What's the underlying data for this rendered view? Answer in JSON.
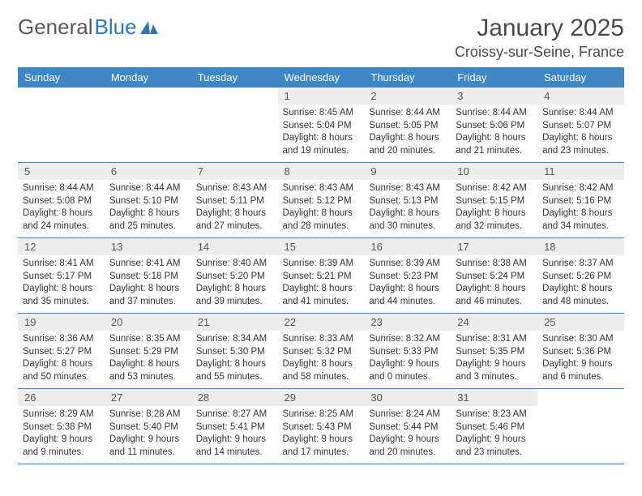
{
  "logo": {
    "text1": "General",
    "text2": "Blue"
  },
  "title": "January 2025",
  "location": "Croissy-sur-Seine, France",
  "colors": {
    "header_bg": "#3d87c7",
    "header_text": "#ffffff",
    "daynum_bg": "#ededed",
    "border": "#3d87c7",
    "logo_gray": "#5a5a5a",
    "logo_blue": "#2f77b5"
  },
  "weekdays": [
    "Sunday",
    "Monday",
    "Tuesday",
    "Wednesday",
    "Thursday",
    "Friday",
    "Saturday"
  ],
  "weeks": [
    [
      null,
      null,
      null,
      {
        "n": "1",
        "sr": "8:45 AM",
        "ss": "5:04 PM",
        "dl": "8 hours and 19 minutes."
      },
      {
        "n": "2",
        "sr": "8:44 AM",
        "ss": "5:05 PM",
        "dl": "8 hours and 20 minutes."
      },
      {
        "n": "3",
        "sr": "8:44 AM",
        "ss": "5:06 PM",
        "dl": "8 hours and 21 minutes."
      },
      {
        "n": "4",
        "sr": "8:44 AM",
        "ss": "5:07 PM",
        "dl": "8 hours and 23 minutes."
      }
    ],
    [
      {
        "n": "5",
        "sr": "8:44 AM",
        "ss": "5:08 PM",
        "dl": "8 hours and 24 minutes."
      },
      {
        "n": "6",
        "sr": "8:44 AM",
        "ss": "5:10 PM",
        "dl": "8 hours and 25 minutes."
      },
      {
        "n": "7",
        "sr": "8:43 AM",
        "ss": "5:11 PM",
        "dl": "8 hours and 27 minutes."
      },
      {
        "n": "8",
        "sr": "8:43 AM",
        "ss": "5:12 PM",
        "dl": "8 hours and 28 minutes."
      },
      {
        "n": "9",
        "sr": "8:43 AM",
        "ss": "5:13 PM",
        "dl": "8 hours and 30 minutes."
      },
      {
        "n": "10",
        "sr": "8:42 AM",
        "ss": "5:15 PM",
        "dl": "8 hours and 32 minutes."
      },
      {
        "n": "11",
        "sr": "8:42 AM",
        "ss": "5:16 PM",
        "dl": "8 hours and 34 minutes."
      }
    ],
    [
      {
        "n": "12",
        "sr": "8:41 AM",
        "ss": "5:17 PM",
        "dl": "8 hours and 35 minutes."
      },
      {
        "n": "13",
        "sr": "8:41 AM",
        "ss": "5:18 PM",
        "dl": "8 hours and 37 minutes."
      },
      {
        "n": "14",
        "sr": "8:40 AM",
        "ss": "5:20 PM",
        "dl": "8 hours and 39 minutes."
      },
      {
        "n": "15",
        "sr": "8:39 AM",
        "ss": "5:21 PM",
        "dl": "8 hours and 41 minutes."
      },
      {
        "n": "16",
        "sr": "8:39 AM",
        "ss": "5:23 PM",
        "dl": "8 hours and 44 minutes."
      },
      {
        "n": "17",
        "sr": "8:38 AM",
        "ss": "5:24 PM",
        "dl": "8 hours and 46 minutes."
      },
      {
        "n": "18",
        "sr": "8:37 AM",
        "ss": "5:26 PM",
        "dl": "8 hours and 48 minutes."
      }
    ],
    [
      {
        "n": "19",
        "sr": "8:36 AM",
        "ss": "5:27 PM",
        "dl": "8 hours and 50 minutes."
      },
      {
        "n": "20",
        "sr": "8:35 AM",
        "ss": "5:29 PM",
        "dl": "8 hours and 53 minutes."
      },
      {
        "n": "21",
        "sr": "8:34 AM",
        "ss": "5:30 PM",
        "dl": "8 hours and 55 minutes."
      },
      {
        "n": "22",
        "sr": "8:33 AM",
        "ss": "5:32 PM",
        "dl": "8 hours and 58 minutes."
      },
      {
        "n": "23",
        "sr": "8:32 AM",
        "ss": "5:33 PM",
        "dl": "9 hours and 0 minutes."
      },
      {
        "n": "24",
        "sr": "8:31 AM",
        "ss": "5:35 PM",
        "dl": "9 hours and 3 minutes."
      },
      {
        "n": "25",
        "sr": "8:30 AM",
        "ss": "5:36 PM",
        "dl": "9 hours and 6 minutes."
      }
    ],
    [
      {
        "n": "26",
        "sr": "8:29 AM",
        "ss": "5:38 PM",
        "dl": "9 hours and 9 minutes."
      },
      {
        "n": "27",
        "sr": "8:28 AM",
        "ss": "5:40 PM",
        "dl": "9 hours and 11 minutes."
      },
      {
        "n": "28",
        "sr": "8:27 AM",
        "ss": "5:41 PM",
        "dl": "9 hours and 14 minutes."
      },
      {
        "n": "29",
        "sr": "8:25 AM",
        "ss": "5:43 PM",
        "dl": "9 hours and 17 minutes."
      },
      {
        "n": "30",
        "sr": "8:24 AM",
        "ss": "5:44 PM",
        "dl": "9 hours and 20 minutes."
      },
      {
        "n": "31",
        "sr": "8:23 AM",
        "ss": "5:46 PM",
        "dl": "9 hours and 23 minutes."
      },
      null
    ]
  ],
  "labels": {
    "sunrise": "Sunrise:",
    "sunset": "Sunset:",
    "daylight": "Daylight:"
  }
}
